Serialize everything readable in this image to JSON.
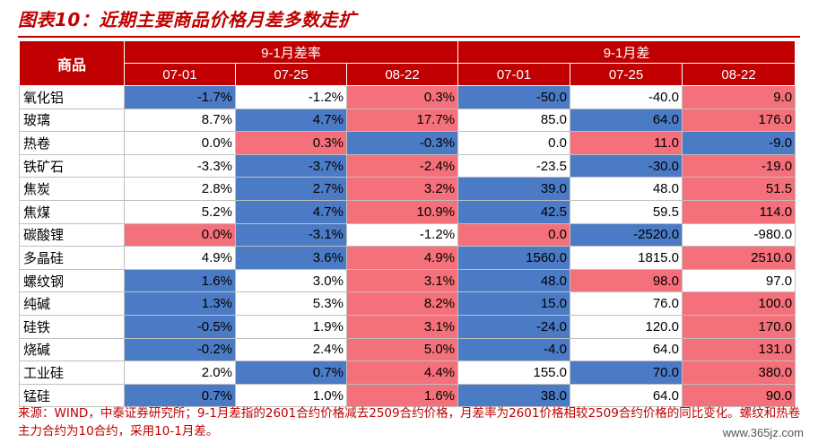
{
  "title": "图表10：近期主要商品价格月差多数走扩",
  "header": {
    "commodity": "商品",
    "group_rate": "9-1月差率",
    "group_diff": "9-1月差",
    "dates": [
      "07-01",
      "07-25",
      "08-22"
    ]
  },
  "colors": {
    "header_bg": "#c00000",
    "positive": "#f4707a",
    "negative": "#4c7bc6",
    "title": "#c00000"
  },
  "rows": [
    {
      "name": "氧化铝",
      "cells": [
        {
          "v": "-1.7%",
          "c": "blue"
        },
        {
          "v": "-1.2%",
          "c": "none"
        },
        {
          "v": "0.3%",
          "c": "red"
        },
        {
          "v": "-50.0",
          "c": "blue"
        },
        {
          "v": "-40.0",
          "c": "none"
        },
        {
          "v": "9.0",
          "c": "red"
        }
      ]
    },
    {
      "name": "玻璃",
      "cells": [
        {
          "v": "8.7%",
          "c": "none"
        },
        {
          "v": "4.7%",
          "c": "blue"
        },
        {
          "v": "17.7%",
          "c": "red"
        },
        {
          "v": "85.0",
          "c": "none"
        },
        {
          "v": "64.0",
          "c": "blue"
        },
        {
          "v": "176.0",
          "c": "red"
        }
      ]
    },
    {
      "name": "热卷",
      "cells": [
        {
          "v": "0.0%",
          "c": "none"
        },
        {
          "v": "0.3%",
          "c": "red"
        },
        {
          "v": "-0.3%",
          "c": "blue"
        },
        {
          "v": "0.0",
          "c": "none"
        },
        {
          "v": "11.0",
          "c": "red"
        },
        {
          "v": "-9.0",
          "c": "blue"
        }
      ]
    },
    {
      "name": "铁矿石",
      "cells": [
        {
          "v": "-3.3%",
          "c": "none"
        },
        {
          "v": "-3.7%",
          "c": "blue"
        },
        {
          "v": "-2.4%",
          "c": "red"
        },
        {
          "v": "-23.5",
          "c": "none"
        },
        {
          "v": "-30.0",
          "c": "blue"
        },
        {
          "v": "-19.0",
          "c": "red"
        }
      ]
    },
    {
      "name": "焦炭",
      "cells": [
        {
          "v": "2.8%",
          "c": "none"
        },
        {
          "v": "2.7%",
          "c": "blue"
        },
        {
          "v": "3.2%",
          "c": "red"
        },
        {
          "v": "39.0",
          "c": "blue"
        },
        {
          "v": "48.0",
          "c": "none"
        },
        {
          "v": "51.5",
          "c": "red"
        }
      ]
    },
    {
      "name": "焦煤",
      "cells": [
        {
          "v": "5.2%",
          "c": "none"
        },
        {
          "v": "4.7%",
          "c": "blue"
        },
        {
          "v": "10.9%",
          "c": "red"
        },
        {
          "v": "42.5",
          "c": "blue"
        },
        {
          "v": "59.5",
          "c": "none"
        },
        {
          "v": "114.0",
          "c": "red"
        }
      ]
    },
    {
      "name": "碳酸锂",
      "cells": [
        {
          "v": "0.0%",
          "c": "red"
        },
        {
          "v": "-3.1%",
          "c": "blue"
        },
        {
          "v": "-1.2%",
          "c": "none"
        },
        {
          "v": "0.0",
          "c": "red"
        },
        {
          "v": "-2520.0",
          "c": "blue"
        },
        {
          "v": "-980.0",
          "c": "none"
        }
      ]
    },
    {
      "name": "多晶硅",
      "cells": [
        {
          "v": "4.9%",
          "c": "none"
        },
        {
          "v": "3.6%",
          "c": "blue"
        },
        {
          "v": "4.9%",
          "c": "red"
        },
        {
          "v": "1560.0",
          "c": "blue"
        },
        {
          "v": "1815.0",
          "c": "none"
        },
        {
          "v": "2510.0",
          "c": "red"
        }
      ]
    },
    {
      "name": "螺纹钢",
      "cells": [
        {
          "v": "1.6%",
          "c": "blue"
        },
        {
          "v": "3.0%",
          "c": "none"
        },
        {
          "v": "3.1%",
          "c": "red"
        },
        {
          "v": "48.0",
          "c": "blue"
        },
        {
          "v": "98.0",
          "c": "red"
        },
        {
          "v": "97.0",
          "c": "none"
        }
      ]
    },
    {
      "name": "纯碱",
      "cells": [
        {
          "v": "1.3%",
          "c": "blue"
        },
        {
          "v": "5.3%",
          "c": "none"
        },
        {
          "v": "8.2%",
          "c": "red"
        },
        {
          "v": "15.0",
          "c": "blue"
        },
        {
          "v": "76.0",
          "c": "none"
        },
        {
          "v": "100.0",
          "c": "red"
        }
      ]
    },
    {
      "name": "硅铁",
      "cells": [
        {
          "v": "-0.5%",
          "c": "blue"
        },
        {
          "v": "1.9%",
          "c": "none"
        },
        {
          "v": "3.1%",
          "c": "red"
        },
        {
          "v": "-24.0",
          "c": "blue"
        },
        {
          "v": "120.0",
          "c": "none"
        },
        {
          "v": "170.0",
          "c": "red"
        }
      ]
    },
    {
      "name": "烧碱",
      "cells": [
        {
          "v": "-0.2%",
          "c": "blue"
        },
        {
          "v": "2.4%",
          "c": "none"
        },
        {
          "v": "5.0%",
          "c": "red"
        },
        {
          "v": "-4.0",
          "c": "blue"
        },
        {
          "v": "64.0",
          "c": "none"
        },
        {
          "v": "131.0",
          "c": "red"
        }
      ]
    },
    {
      "name": "工业硅",
      "cells": [
        {
          "v": "2.0%",
          "c": "none"
        },
        {
          "v": "0.7%",
          "c": "blue"
        },
        {
          "v": "4.4%",
          "c": "red"
        },
        {
          "v": "155.0",
          "c": "none"
        },
        {
          "v": "70.0",
          "c": "blue"
        },
        {
          "v": "380.0",
          "c": "red"
        }
      ]
    },
    {
      "name": "锰硅",
      "cells": [
        {
          "v": "0.7%",
          "c": "blue"
        },
        {
          "v": "1.0%",
          "c": "none"
        },
        {
          "v": "1.6%",
          "c": "red"
        },
        {
          "v": "38.0",
          "c": "blue"
        },
        {
          "v": "64.0",
          "c": "none"
        },
        {
          "v": "90.0",
          "c": "red"
        }
      ]
    }
  ],
  "source_note": "来源：WIND，中泰证券研究所；9-1月差指的2601合约价格减去2509合约价格，月差率为2601价格相较2509合约价格的同比变化。螺纹和热卷主力合约为10合约，采用10-1月差。",
  "watermark": "www.365jz.com"
}
